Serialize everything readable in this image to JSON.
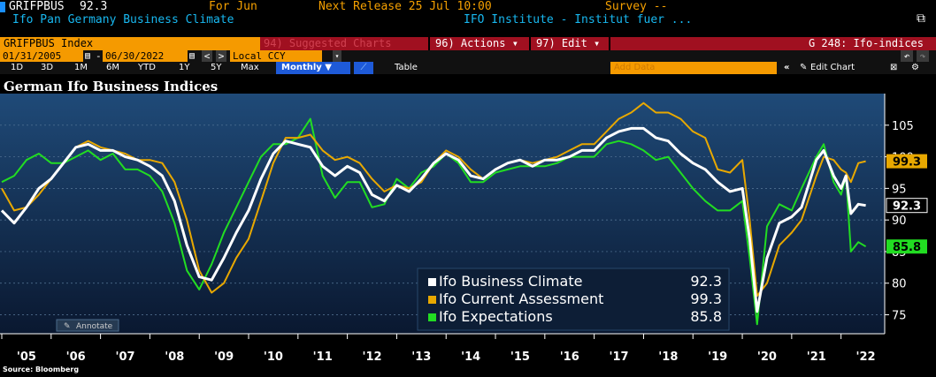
{
  "header": {
    "ticker": "GRIFPBUS",
    "value": "92.3",
    "for_label": "For Jun",
    "next_release": "Next Release 25 Jul 10:00",
    "survey": "Survey --",
    "description": "Ifo Pan Germany Business Climate",
    "source_name": "IFO Institute - Institut fuer ...",
    "window_icon": "window-copy-icon"
  },
  "toolbar": {
    "index_field": "GRIFPBUS Index",
    "suggested_charts": "94) Suggested Charts",
    "actions": "96) Actions ▾",
    "edit": "97) Edit ▾",
    "chart_name": "G 248: Ifo-indices"
  },
  "range": {
    "start_date": "01/31/2005",
    "end_date": "06/30/2022",
    "prev": "<",
    "next": ">",
    "currency": "Local CCY",
    "currency_arrow": "▾"
  },
  "periods": {
    "items": [
      "1D",
      "3D",
      "1M",
      "6M",
      "YTD",
      "1Y",
      "5Y",
      "Max"
    ],
    "frequency": "Monthly ▼",
    "table": "Table",
    "add_data": "Add Data",
    "edit_chart": "Edit Chart",
    "collapse": "«"
  },
  "annotate": "Annotate",
  "source": "Source: Bloomberg",
  "colors": {
    "bg": "#000000",
    "plot_top": "#1f4a78",
    "plot_bottom": "#0a1830",
    "climate": "#ffffff",
    "current": "#e8a800",
    "expectations": "#22dd22",
    "orange_bar": "#f59a00",
    "red_bar": "#a01020"
  },
  "chart_data": {
    "type": "line",
    "title": "German Ifo Business Indices",
    "xlabel": "",
    "ylabel": "",
    "ylim": [
      72,
      110
    ],
    "x_ticks": [
      "'05",
      "'06",
      "'07",
      "'08",
      "'09",
      "'10",
      "'11",
      "'12",
      "'13",
      "'14",
      "'15",
      "'16",
      "'17",
      "'18",
      "'19",
      "'20",
      "'21",
      "'22"
    ],
    "y_ticks": [
      75,
      80,
      85,
      90,
      95,
      100,
      105
    ],
    "grid": true,
    "legend_position": "bottom-right",
    "series": [
      {
        "name": "Ifo Business Climate",
        "last_value": 92.3,
        "points": [
          [
            2005.0,
            91.5
          ],
          [
            2005.25,
            89.5
          ],
          [
            2005.5,
            92
          ],
          [
            2005.75,
            95
          ],
          [
            2006.0,
            96.5
          ],
          [
            2006.25,
            99
          ],
          [
            2006.5,
            101.5
          ],
          [
            2006.75,
            102
          ],
          [
            2007.0,
            101
          ],
          [
            2007.25,
            101
          ],
          [
            2007.5,
            100
          ],
          [
            2007.75,
            99.5
          ],
          [
            2008.0,
            98.5
          ],
          [
            2008.25,
            97
          ],
          [
            2008.5,
            93
          ],
          [
            2008.75,
            86
          ],
          [
            2009.0,
            81
          ],
          [
            2009.25,
            80.5
          ],
          [
            2009.5,
            84
          ],
          [
            2009.75,
            88
          ],
          [
            2010.0,
            91.5
          ],
          [
            2010.25,
            96.5
          ],
          [
            2010.5,
            100.5
          ],
          [
            2010.75,
            102.5
          ],
          [
            2011.0,
            102
          ],
          [
            2011.25,
            101.5
          ],
          [
            2011.5,
            98.5
          ],
          [
            2011.75,
            97
          ],
          [
            2012.0,
            98.5
          ],
          [
            2012.25,
            97.5
          ],
          [
            2012.5,
            94
          ],
          [
            2012.75,
            93
          ],
          [
            2013.0,
            95.5
          ],
          [
            2013.25,
            94.5
          ],
          [
            2013.5,
            96.5
          ],
          [
            2013.75,
            99
          ],
          [
            2014.0,
            100.5
          ],
          [
            2014.25,
            99.5
          ],
          [
            2014.5,
            97
          ],
          [
            2014.75,
            96.5
          ],
          [
            2015.0,
            98
          ],
          [
            2015.25,
            99
          ],
          [
            2015.5,
            99.5
          ],
          [
            2015.75,
            98.5
          ],
          [
            2016.0,
            99.5
          ],
          [
            2016.25,
            99.5
          ],
          [
            2016.5,
            100
          ],
          [
            2016.75,
            101
          ],
          [
            2017.0,
            101
          ],
          [
            2017.25,
            103
          ],
          [
            2017.5,
            104
          ],
          [
            2017.75,
            104.5
          ],
          [
            2018.0,
            104.5
          ],
          [
            2018.25,
            103
          ],
          [
            2018.5,
            102.5
          ],
          [
            2018.75,
            100.5
          ],
          [
            2019.0,
            99
          ],
          [
            2019.25,
            98
          ],
          [
            2019.5,
            96
          ],
          [
            2019.75,
            94.5
          ],
          [
            2020.0,
            95
          ],
          [
            2020.15,
            87
          ],
          [
            2020.3,
            75.5
          ],
          [
            2020.5,
            84
          ],
          [
            2020.75,
            89.5
          ],
          [
            2021.0,
            90.5
          ],
          [
            2021.2,
            92
          ],
          [
            2021.5,
            99.5
          ],
          [
            2021.65,
            101
          ],
          [
            2021.85,
            97
          ],
          [
            2022.0,
            95
          ],
          [
            2022.1,
            97
          ],
          [
            2022.2,
            91
          ],
          [
            2022.35,
            92.5
          ],
          [
            2022.5,
            92.3
          ]
        ]
      },
      {
        "name": "Ifo Current Assessment",
        "last_value": 99.3,
        "points": [
          [
            2005.0,
            95
          ],
          [
            2005.25,
            91.5
          ],
          [
            2005.5,
            92
          ],
          [
            2005.75,
            94
          ],
          [
            2006.0,
            96.5
          ],
          [
            2006.25,
            99
          ],
          [
            2006.5,
            101.5
          ],
          [
            2006.75,
            102.5
          ],
          [
            2007.0,
            101.5
          ],
          [
            2007.25,
            101
          ],
          [
            2007.5,
            100.5
          ],
          [
            2007.75,
            99.5
          ],
          [
            2008.0,
            99.5
          ],
          [
            2008.25,
            99
          ],
          [
            2008.5,
            96
          ],
          [
            2008.75,
            90
          ],
          [
            2009.0,
            82
          ],
          [
            2009.25,
            78.5
          ],
          [
            2009.5,
            80
          ],
          [
            2009.75,
            84
          ],
          [
            2010.0,
            87
          ],
          [
            2010.25,
            93
          ],
          [
            2010.5,
            99
          ],
          [
            2010.75,
            103
          ],
          [
            2011.0,
            103
          ],
          [
            2011.25,
            103.5
          ],
          [
            2011.5,
            101
          ],
          [
            2011.75,
            99.5
          ],
          [
            2012.0,
            100
          ],
          [
            2012.25,
            99
          ],
          [
            2012.5,
            96.5
          ],
          [
            2012.75,
            94.5
          ],
          [
            2013.0,
            95.5
          ],
          [
            2013.25,
            95
          ],
          [
            2013.5,
            96
          ],
          [
            2013.75,
            99
          ],
          [
            2014.0,
            101
          ],
          [
            2014.25,
            100
          ],
          [
            2014.5,
            98
          ],
          [
            2014.75,
            96.5
          ],
          [
            2015.0,
            98
          ],
          [
            2015.25,
            99
          ],
          [
            2015.5,
            99.5
          ],
          [
            2015.75,
            99
          ],
          [
            2016.0,
            99.5
          ],
          [
            2016.25,
            100
          ],
          [
            2016.5,
            101
          ],
          [
            2016.75,
            102
          ],
          [
            2017.0,
            102
          ],
          [
            2017.25,
            104
          ],
          [
            2017.5,
            106
          ],
          [
            2017.75,
            107
          ],
          [
            2018.0,
            108.5
          ],
          [
            2018.25,
            107
          ],
          [
            2018.5,
            107
          ],
          [
            2018.75,
            106
          ],
          [
            2019.0,
            104
          ],
          [
            2019.25,
            103
          ],
          [
            2019.5,
            98
          ],
          [
            2019.75,
            97.5
          ],
          [
            2020.0,
            99.5
          ],
          [
            2020.15,
            90
          ],
          [
            2020.3,
            78
          ],
          [
            2020.5,
            80
          ],
          [
            2020.75,
            86
          ],
          [
            2021.0,
            88
          ],
          [
            2021.2,
            90
          ],
          [
            2021.5,
            97
          ],
          [
            2021.65,
            100
          ],
          [
            2021.85,
            99.5
          ],
          [
            2022.0,
            98
          ],
          [
            2022.1,
            97.5
          ],
          [
            2022.2,
            96
          ],
          [
            2022.35,
            99
          ],
          [
            2022.5,
            99.3
          ]
        ]
      },
      {
        "name": "Ifo Expectations",
        "last_value": 85.8,
        "points": [
          [
            2005.0,
            96
          ],
          [
            2005.25,
            97
          ],
          [
            2005.5,
            99.5
          ],
          [
            2005.75,
            100.5
          ],
          [
            2006.0,
            99
          ],
          [
            2006.25,
            99
          ],
          [
            2006.5,
            100
          ],
          [
            2006.75,
            101
          ],
          [
            2007.0,
            99.5
          ],
          [
            2007.25,
            100.5
          ],
          [
            2007.5,
            98
          ],
          [
            2007.75,
            98
          ],
          [
            2008.0,
            97
          ],
          [
            2008.25,
            94.5
          ],
          [
            2008.5,
            89.5
          ],
          [
            2008.75,
            82
          ],
          [
            2009.0,
            79
          ],
          [
            2009.25,
            83
          ],
          [
            2009.5,
            88
          ],
          [
            2009.75,
            92
          ],
          [
            2010.0,
            96
          ],
          [
            2010.25,
            100
          ],
          [
            2010.5,
            102
          ],
          [
            2010.75,
            102
          ],
          [
            2011.0,
            103
          ],
          [
            2011.25,
            106
          ],
          [
            2011.5,
            97
          ],
          [
            2011.75,
            93.5
          ],
          [
            2012.0,
            96
          ],
          [
            2012.25,
            96
          ],
          [
            2012.5,
            92
          ],
          [
            2012.75,
            92.5
          ],
          [
            2013.0,
            96.5
          ],
          [
            2013.25,
            95
          ],
          [
            2013.5,
            97.5
          ],
          [
            2013.75,
            98.5
          ],
          [
            2014.0,
            100.5
          ],
          [
            2014.25,
            99
          ],
          [
            2014.5,
            96
          ],
          [
            2014.75,
            96
          ],
          [
            2015.0,
            97.5
          ],
          [
            2015.25,
            98
          ],
          [
            2015.5,
            98.5
          ],
          [
            2015.75,
            98.5
          ],
          [
            2016.0,
            98.5
          ],
          [
            2016.25,
            99
          ],
          [
            2016.5,
            100
          ],
          [
            2016.75,
            100
          ],
          [
            2017.0,
            100
          ],
          [
            2017.25,
            102
          ],
          [
            2017.5,
            102.5
          ],
          [
            2017.75,
            102
          ],
          [
            2018.0,
            101
          ],
          [
            2018.25,
            99.5
          ],
          [
            2018.5,
            100
          ],
          [
            2018.75,
            97.5
          ],
          [
            2019.0,
            95
          ],
          [
            2019.25,
            93
          ],
          [
            2019.5,
            91.5
          ],
          [
            2019.75,
            91.5
          ],
          [
            2020.0,
            93
          ],
          [
            2020.15,
            84
          ],
          [
            2020.3,
            73.5
          ],
          [
            2020.5,
            89
          ],
          [
            2020.75,
            92.5
          ],
          [
            2021.0,
            91.5
          ],
          [
            2021.2,
            95
          ],
          [
            2021.5,
            100
          ],
          [
            2021.65,
            102
          ],
          [
            2021.85,
            96
          ],
          [
            2022.0,
            94
          ],
          [
            2022.1,
            97
          ],
          [
            2022.2,
            85
          ],
          [
            2022.35,
            86.5
          ],
          [
            2022.5,
            85.8
          ]
        ]
      }
    ]
  }
}
